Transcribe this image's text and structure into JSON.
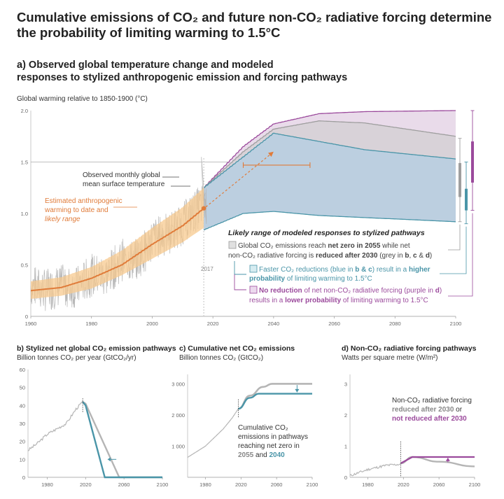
{
  "title_line1": "Cumulative emissions of CO₂ and future non-CO₂ radiative forcing determine",
  "title_line2": "the probability of limiting warming to 1.5°C",
  "panel_a": {
    "subtitle_line1": "a) Observed global temperature change and modeled",
    "subtitle_line2": "responses to stylized anthropogenic emission and forcing pathways",
    "ylabel": "Global warming relative to 1850-1900 (°C)",
    "obs_label_1": "Observed monthly global",
    "obs_label_2": "mean surface temperature",
    "est_label_1": "Estimated anthropogenic",
    "est_label_2": "warming to date and",
    "est_label_3": "likely range",
    "year_label": "2017",
    "legend_title": "Likely range of modeled responses to stylized pathways",
    "legend_grey_1a": "Global CO₂ emissions reach ",
    "legend_grey_1b": "net zero in 2055",
    "legend_grey_1c": " while net",
    "legend_grey_2a": "non-CO₂ radiative forcing is ",
    "legend_grey_2b": "reduced after 2030",
    "legend_grey_2c": " (grey in ",
    "legend_grey_2d": "b",
    "legend_grey_2e": ", ",
    "legend_grey_2f": "c",
    "legend_grey_2g": " & ",
    "legend_grey_2h": "d",
    "legend_grey_2i": ")",
    "legend_blue_1a": "Faster CO₂ reductions (blue in ",
    "legend_blue_1b": "b & c",
    "legend_blue_1c": ") result in a ",
    "legend_blue_1d": "higher",
    "legend_blue_2a": "probability",
    "legend_blue_2b": " of limiting warming to 1.5°C",
    "legend_purple_1a": "No reduction",
    "legend_purple_1b": " of net non-CO₂ radiative forcing (purple in ",
    "legend_purple_1c": "d",
    "legend_purple_1d": ")",
    "legend_purple_2a": "results in a ",
    "legend_purple_2b": "lower probability",
    "legend_purple_2c": " of limiting warming to 1.5°C"
  },
  "panel_b": {
    "title": "b) Stylized net global CO₂ emission pathways",
    "unit": "Billion tonnes CO₂ per year (GtCO₂/yr)"
  },
  "panel_c": {
    "title": "c) Cumulative net CO₂ emissions",
    "unit": "Billion tonnes CO₂ (GtCO₂)",
    "note_1": "Cumulative CO₂",
    "note_2": "emissions in pathways",
    "note_3": "reaching net zero in",
    "note_4a": "2055",
    "note_4b": " and ",
    "note_4c": "2040"
  },
  "panel_d": {
    "title": "d) Non-CO₂ radiative forcing pathways",
    "unit": "Watts per square metre (W/m²)",
    "note_1": "Non-CO₂ radiative forcing",
    "note_2a": "reduced after 2030",
    "note_2b": " or",
    "note_3": "not reduced after 2030"
  },
  "colors": {
    "grey": "#9e9e9e",
    "blue": "#4a95a8",
    "purple": "#9b4a9c",
    "orange": "#e07b39",
    "orange_band": "#f7c98f"
  },
  "chart_data": [
    {
      "type": "area",
      "panel": "a",
      "xlim": [
        1960,
        2100
      ],
      "ylim": [
        0,
        2.0
      ],
      "xticks": [
        1960,
        1980,
        2000,
        2020,
        2040,
        2060,
        2080,
        2100
      ],
      "yticks": [
        "0",
        "0.5",
        "1.0",
        "1.5",
        "2.0"
      ],
      "reference_line": 1.5,
      "series": [
        {
          "name": "Estimated anthropogenic warming to date and likely range",
          "x": [
            1960,
            1970,
            1980,
            1990,
            2000,
            2010,
            2017
          ],
          "y": [
            0.25,
            0.28,
            0.37,
            0.5,
            0.7,
            0.88,
            1.05
          ],
          "low": [
            0.17,
            0.2,
            0.27,
            0.4,
            0.56,
            0.72,
            0.86
          ],
          "high": [
            0.34,
            0.38,
            0.48,
            0.64,
            0.86,
            1.06,
            1.25
          ]
        },
        {
          "name": "Observed monthly global mean surface temperature",
          "x": [
            1960,
            1965,
            1970,
            1975,
            1980,
            1985,
            1990,
            1995,
            2000,
            2005,
            2010,
            2015,
            2017
          ],
          "y": [
            0.3,
            0.25,
            0.3,
            0.28,
            0.4,
            0.4,
            0.55,
            0.55,
            0.75,
            0.8,
            0.9,
            1.05,
            1.1
          ]
        },
        {
          "name": "purple range",
          "x": [
            2017,
            2030,
            2040,
            2055,
            2070,
            2100
          ],
          "low": [
            0.84,
            1.02,
            1.08,
            1.1,
            1.1,
            1.1
          ],
          "high": [
            1.25,
            1.65,
            1.87,
            1.97,
            1.99,
            2.0
          ]
        },
        {
          "name": "grey range",
          "x": [
            2017,
            2030,
            2040,
            2055,
            2070,
            2100
          ],
          "low": [
            0.84,
            1.02,
            1.06,
            1.04,
            1.02,
            0.98
          ],
          "high": [
            1.25,
            1.6,
            1.82,
            1.9,
            1.88,
            1.75
          ]
        },
        {
          "name": "blue range",
          "x": [
            2017,
            2030,
            2040,
            2055,
            2070,
            2100
          ],
          "low": [
            0.84,
            1.0,
            1.02,
            0.98,
            0.96,
            0.92
          ],
          "high": [
            1.25,
            1.55,
            1.78,
            1.7,
            1.62,
            1.53
          ]
        }
      ],
      "annotations": {
        "dashed_arrow": {
          "from": [
            2017,
            1.05
          ],
          "to": [
            2040,
            1.6
          ]
        },
        "range_bar": {
          "x": [
            2030,
            2052
          ],
          "y": 1.47
        }
      }
    },
    {
      "type": "line",
      "panel": "b",
      "xlim": [
        1960,
        2100
      ],
      "ylim": [
        0,
        60
      ],
      "xticks": [
        1980,
        2020,
        2060,
        2100
      ],
      "yticks": [
        0,
        10,
        20,
        30,
        40,
        50,
        60
      ],
      "series": [
        {
          "name": "historical",
          "x": [
            1960,
            1970,
            1980,
            1990,
            2000,
            2010,
            2017
          ],
          "y": [
            15,
            19,
            24,
            27,
            30,
            38,
            42
          ]
        },
        {
          "name": "net zero in 2055",
          "x": [
            2017,
            2020,
            2055,
            2100
          ],
          "y": [
            42,
            41,
            0,
            0
          ]
        },
        {
          "name": "net zero in 2040",
          "x": [
            2017,
            2020,
            2040,
            2100
          ],
          "y": [
            42,
            40,
            0,
            0
          ]
        }
      ]
    },
    {
      "type": "line",
      "panel": "c",
      "xlim": [
        1960,
        2100
      ],
      "ylim": [
        0,
        3300
      ],
      "xticks": [
        1980,
        2020,
        2060,
        2100
      ],
      "yticks": [
        "1 000",
        "2 000",
        "3 000"
      ],
      "series": [
        {
          "name": "historical",
          "x": [
            1960,
            1980,
            2000,
            2010,
            2017
          ],
          "y": [
            640,
            1000,
            1550,
            1900,
            2200
          ]
        },
        {
          "name": "net zero in 2055",
          "x": [
            2017,
            2030,
            2045,
            2055,
            2100
          ],
          "y": [
            2200,
            2620,
            2900,
            3000,
            3000
          ]
        },
        {
          "name": "net zero in 2040",
          "x": [
            2017,
            2030,
            2040,
            2100
          ],
          "y": [
            2200,
            2550,
            2680,
            2680
          ]
        }
      ]
    },
    {
      "type": "line",
      "panel": "d",
      "xlim": [
        1960,
        2100
      ],
      "ylim": [
        0,
        3.3
      ],
      "xticks": [
        1980,
        2020,
        2060,
        2100
      ],
      "yticks": [
        0,
        1,
        2,
        3
      ],
      "series": [
        {
          "name": "historical",
          "x": [
            1960,
            1980,
            2000,
            2017
          ],
          "y": [
            0.05,
            0.25,
            0.38,
            0.42
          ]
        },
        {
          "name": "reduced after 2030",
          "x": [
            2017,
            2030,
            2060,
            2100
          ],
          "y": [
            0.45,
            0.65,
            0.5,
            0.35
          ]
        },
        {
          "name": "not reduced after 2030",
          "x": [
            2017,
            2030,
            2100
          ],
          "y": [
            0.45,
            0.65,
            0.65
          ]
        }
      ]
    }
  ]
}
